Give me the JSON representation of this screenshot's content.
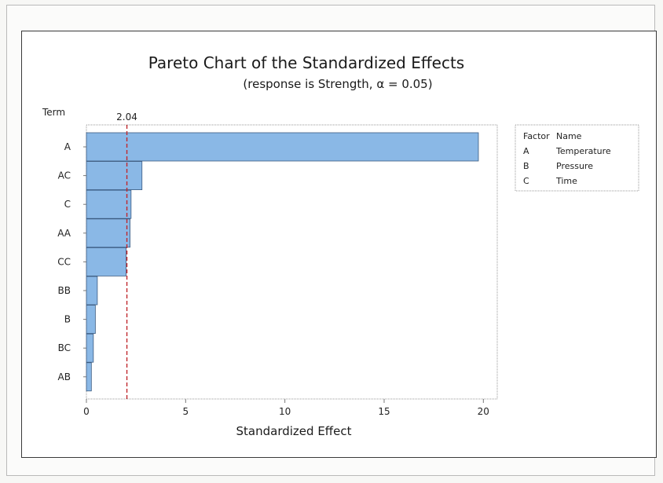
{
  "chart_data": {
    "type": "bar",
    "orientation": "horizontal",
    "title": "Pareto Chart of the Standardized Effects",
    "subtitle": "(response is Strength, α = 0.05)",
    "xlabel": "Standardized Effect",
    "ylabel": "Term",
    "categories": [
      "A",
      "AC",
      "C",
      "AA",
      "CC",
      "BB",
      "B",
      "BC",
      "AB"
    ],
    "values": [
      19.75,
      2.8,
      2.25,
      2.2,
      2.0,
      0.55,
      0.45,
      0.35,
      0.25
    ],
    "xlim": [
      0,
      20.7
    ],
    "xticks": [
      0,
      5,
      10,
      15,
      20
    ],
    "reference_line": {
      "value": 2.04,
      "label": "2.04",
      "color": "#c0282d"
    },
    "bar_color": "#8ab8e6",
    "bar_edge_color": "#3a5a80",
    "legend": {
      "placement": "right",
      "header": [
        "Factor",
        "Name"
      ],
      "rows": [
        [
          "A",
          "Temperature"
        ],
        [
          "B",
          "Pressure"
        ],
        [
          "C",
          "Time"
        ]
      ]
    }
  }
}
